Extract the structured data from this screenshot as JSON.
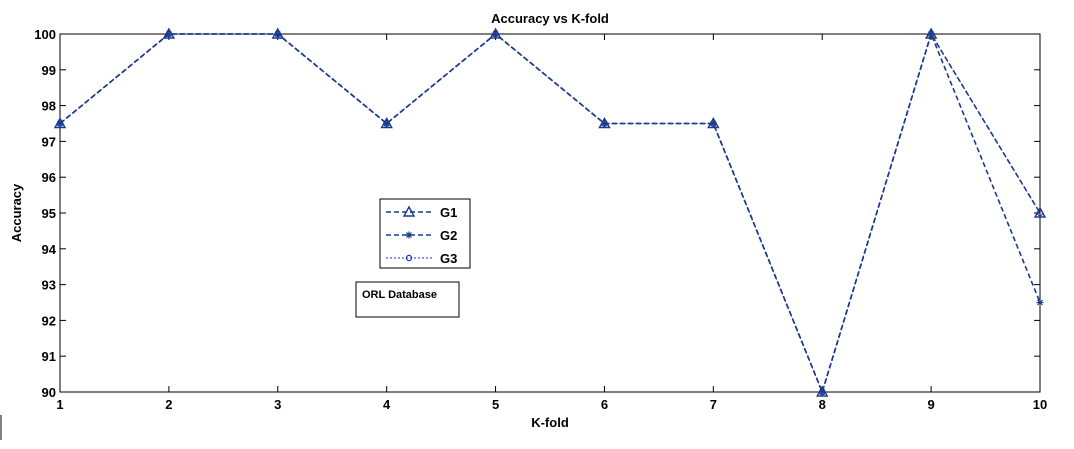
{
  "chart_data": {
    "type": "line",
    "title": "Accuracy vs K-fold",
    "xlabel": "K-fold",
    "ylabel": "Accuracy",
    "x": [
      1,
      2,
      3,
      4,
      5,
      6,
      7,
      8,
      9,
      10
    ],
    "xlim": [
      1,
      10
    ],
    "ylim": [
      90,
      100
    ],
    "xticks": [
      "1",
      "2",
      "3",
      "4",
      "5",
      "6",
      "7",
      "8",
      "9",
      "10"
    ],
    "yticks": [
      "90",
      "91",
      "92",
      "93",
      "94",
      "95",
      "96",
      "97",
      "98",
      "99",
      "100"
    ],
    "grid": false,
    "legend_position": "center-left",
    "series": [
      {
        "name": "G1",
        "marker": "triangle",
        "dash": "dashed",
        "color": "#1a3a8a",
        "values": [
          97.5,
          100,
          100,
          97.5,
          100,
          97.5,
          97.5,
          90,
          100,
          95
        ]
      },
      {
        "name": "G2",
        "marker": "star",
        "dash": "dashed",
        "color": "#1a3a8a",
        "values": [
          97.5,
          100,
          100,
          97.5,
          100,
          97.5,
          97.5,
          90,
          100,
          92.5
        ]
      },
      {
        "name": "G3",
        "marker": "circle",
        "dash": "dotted",
        "color": "#2233cc",
        "values": [
          97.5,
          100,
          100,
          97.5,
          100,
          97.5,
          97.5,
          90,
          100,
          95
        ]
      }
    ],
    "annotation": "ORL Database"
  }
}
